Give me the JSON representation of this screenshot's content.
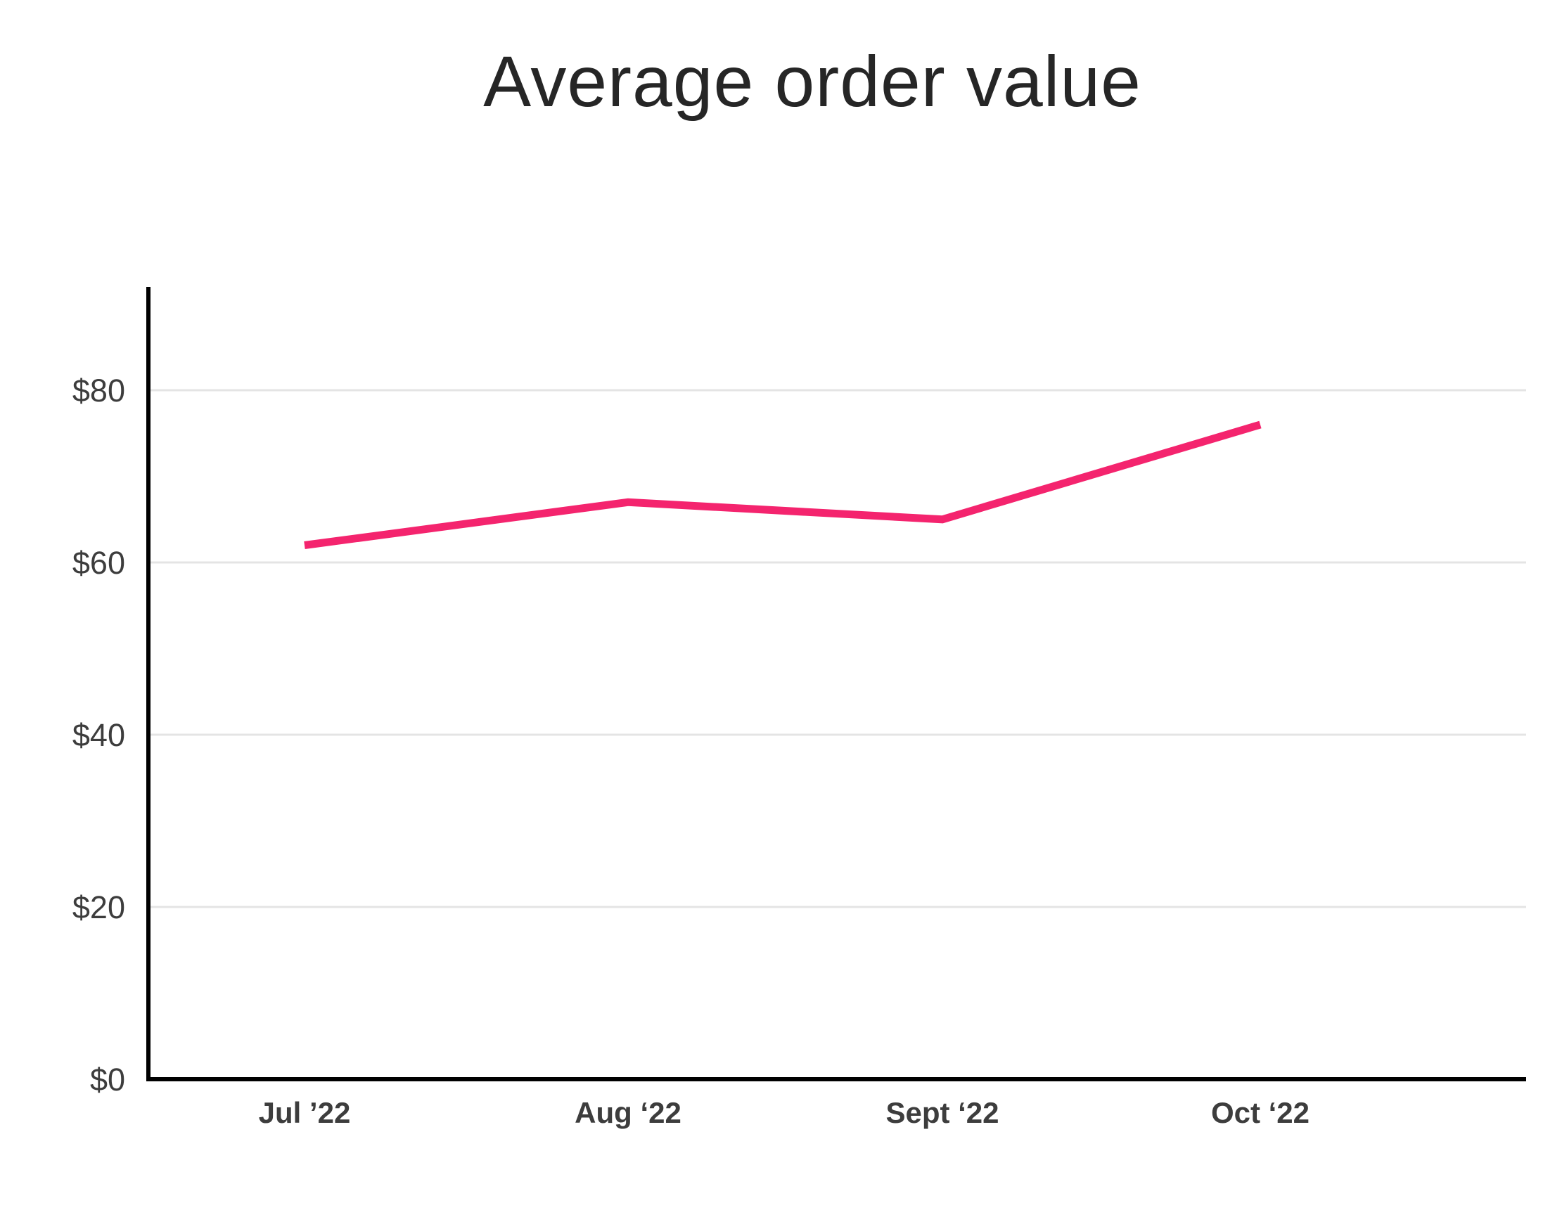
{
  "chart_data": {
    "type": "line",
    "title": "Average order value",
    "xlabel": "",
    "ylabel": "",
    "categories": [
      "Jul ’22",
      "Aug ‘22",
      "Sept ‘22",
      "Oct ‘22"
    ],
    "series": [
      {
        "values": [
          62,
          67,
          65,
          76
        ],
        "color": "#f4246e"
      }
    ],
    "yticks": [
      0,
      20,
      40,
      60,
      80
    ],
    "ytick_labels": [
      "$0",
      "$20",
      "$40",
      "$60",
      "$80"
    ],
    "ylim": [
      0,
      92
    ],
    "grid": true,
    "legend": "none"
  }
}
